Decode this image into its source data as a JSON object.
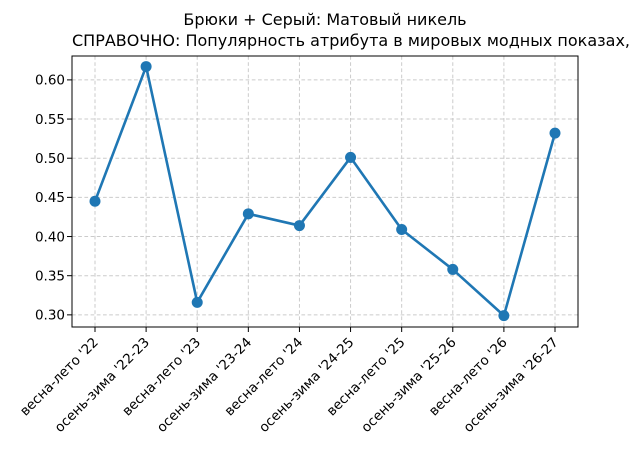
{
  "chart_data": {
    "type": "line",
    "title": "Брюки + Серый: Матовый никель",
    "subtitle": "СПРАВОЧНО: Популярность атрибута в мировых модных показах, %",
    "categories": [
      "весна-лето '22",
      "осень-зима '22-23",
      "весна-лето '23",
      "осень-зима '23-24",
      "весна-лето '24",
      "осень-зима '24-25",
      "весна-лето '25",
      "осень-зима '25-26",
      "весна-лето '26",
      "осень-зима '26-27"
    ],
    "values": [
      0.445,
      0.617,
      0.316,
      0.429,
      0.414,
      0.501,
      0.409,
      0.358,
      0.299,
      0.532
    ],
    "xlabel": "",
    "ylabel": "",
    "y_ticks": [
      0.3,
      0.35,
      0.4,
      0.45,
      0.5,
      0.55,
      0.6
    ],
    "ylim": [
      0.2845,
      0.6305
    ],
    "x_tick_rotation": 45,
    "grid": true,
    "grid_style": "dashed",
    "legend": false,
    "marker": "circle",
    "colors": {
      "line": "#1f77b4",
      "marker": "#1f77b4",
      "grid": "#cbcbcb",
      "axis": "#000000",
      "text": "#000000",
      "background": "#ffffff"
    }
  }
}
